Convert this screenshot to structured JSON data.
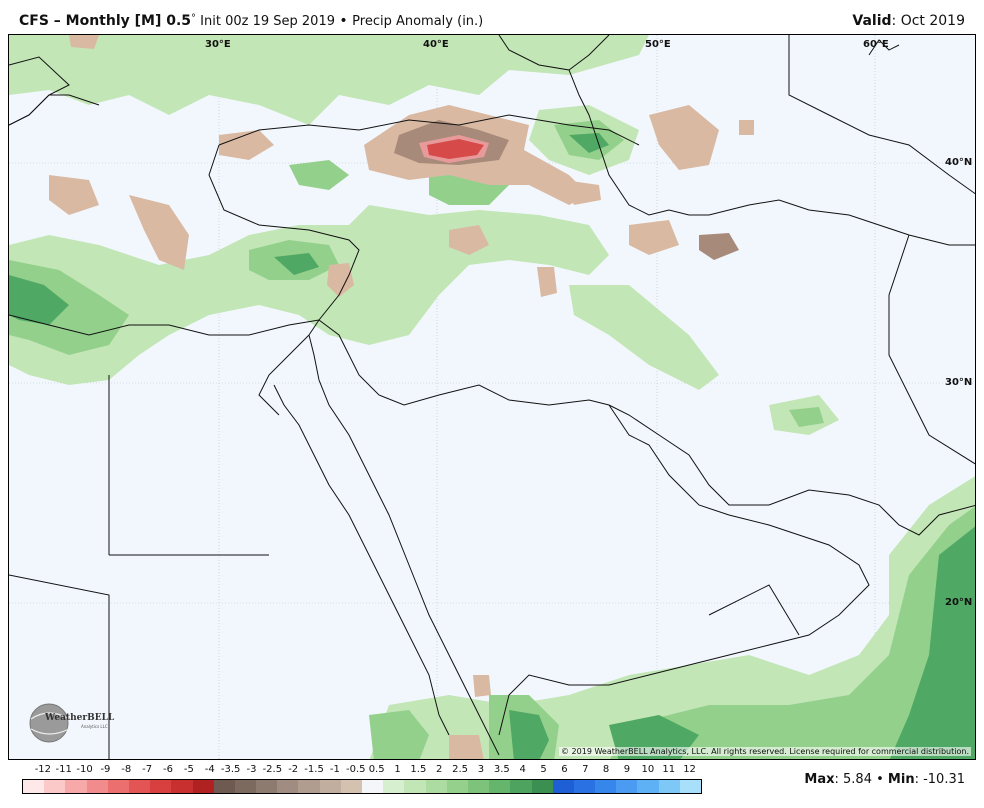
{
  "header": {
    "model": "CFS – Monthly [M] 0.5",
    "degree": "°",
    "init": " Init 00z 19 Sep 2019",
    "separator": " • ",
    "field": "Precip Anomaly (in.)",
    "valid_label": "Valid",
    "valid_value": ": Oct 2019"
  },
  "map": {
    "longitude_labels": [
      "30°E",
      "40°E",
      "50°E",
      "60°E"
    ],
    "latitude_labels": [
      "40°N",
      "30°N",
      "20°N"
    ],
    "copyright": "© 2019 WeatherBELL Analytics, LLC. All rights reserved. License required for commercial distribution.",
    "logo_text": "WeatherBELL",
    "logo_sub": "Analytics LLC",
    "colors": {
      "ocean": "#f2f7fd",
      "coast": "#111111",
      "wet_light": "#c2e6b6",
      "wet_mid": "#93d08b",
      "wet_dark": "#4fa863",
      "dry_light": "#d9b9a2",
      "dry_mid": "#a88a7a",
      "dry_strong": "#d64a4a"
    }
  },
  "colorbar": {
    "labels": [
      "-12",
      "-11",
      "-10",
      "-9",
      "-8",
      "-7",
      "-6",
      "-5",
      "-4",
      "-3.5",
      "-3",
      "-2.5",
      "-2",
      "-1.5",
      "-1",
      "-0.5",
      "0.5",
      "1",
      "1.5",
      "2",
      "2.5",
      "3",
      "3.5",
      "4",
      "5",
      "6",
      "7",
      "8",
      "9",
      "10",
      "11",
      "12"
    ],
    "colors": [
      "#ffe8e8",
      "#fcc9c9",
      "#f7a9a9",
      "#f28c8c",
      "#ec6f6f",
      "#e35454",
      "#d84040",
      "#c83030",
      "#b02222",
      "#6e5a50",
      "#7d6a5f",
      "#8e7b70",
      "#a08c80",
      "#b19d90",
      "#c1ae9f",
      "#d4c1b0",
      "#f4f6f9",
      "#d6efcf",
      "#c2e6b6",
      "#acdca1",
      "#95d08c",
      "#7ec37b",
      "#66b56c",
      "#4ea45e",
      "#3a8f51",
      "#1f5fd6",
      "#2a72e3",
      "#3786ec",
      "#4a9bf1",
      "#5fb1f5",
      "#7ec8f8",
      "#a8e0fb"
    ]
  },
  "stats": {
    "max_label": "Max",
    "max_value": ": 5.84",
    "separator": " • ",
    "min_label": "Min",
    "min_value": ": -10.31"
  }
}
